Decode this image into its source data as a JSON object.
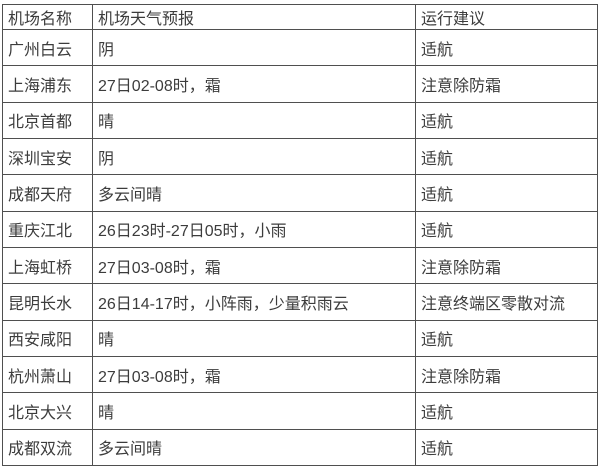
{
  "page": {
    "background_color": "#ffffff",
    "text_color": "#3c3c3c",
    "border_color": "#4f4f4f"
  },
  "table": {
    "headers": [
      "机场名称",
      "机场天气预报",
      "运行建议"
    ],
    "rows": [
      [
        "广州白云",
        "阴",
        "适航"
      ],
      [
        "上海浦东",
        "27日02-08时，霜",
        "注意除防霜"
      ],
      [
        "北京首都",
        "晴",
        "适航"
      ],
      [
        "深圳宝安",
        "阴",
        "适航"
      ],
      [
        "成都天府",
        "多云间晴",
        "适航"
      ],
      [
        "重庆江北",
        "26日23时-27日05时，小雨",
        "适航"
      ],
      [
        "上海虹桥",
        "27日03-08时，霜",
        "注意除防霜"
      ],
      [
        "昆明长水",
        "26日14-17时，小阵雨，少量积雨云",
        "注意终端区零散对流"
      ],
      [
        "西安咸阳",
        "晴",
        "适航"
      ],
      [
        "杭州萧山",
        "27日03-08时，霜",
        "注意除防霜"
      ],
      [
        "北京大兴",
        "晴",
        "适航"
      ],
      [
        "成都双流",
        "多云间晴",
        "适航"
      ]
    ]
  }
}
